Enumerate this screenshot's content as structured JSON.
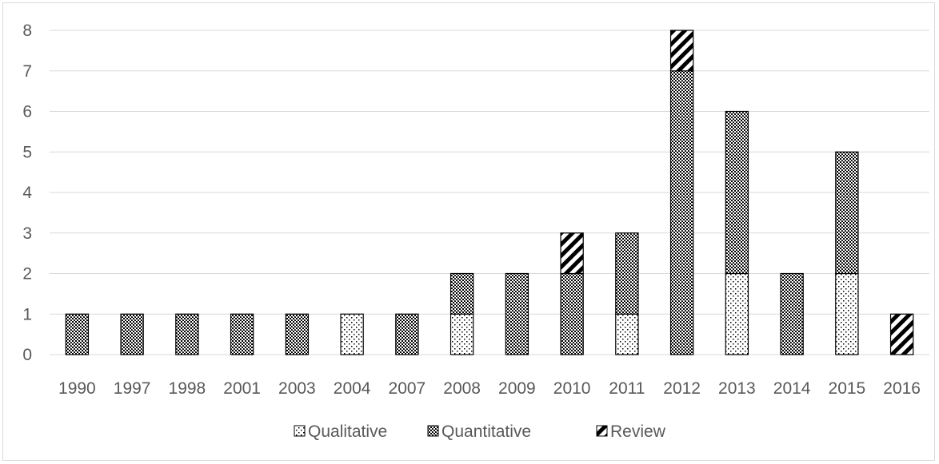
{
  "chart_data": {
    "type": "bar",
    "stacked": true,
    "categories": [
      "1990",
      "1997",
      "1998",
      "2001",
      "2003",
      "2004",
      "2007",
      "2008",
      "2009",
      "2010",
      "2011",
      "2012",
      "2013",
      "2014",
      "2015",
      "2016"
    ],
    "series": [
      {
        "name": "Qualitative",
        "values": [
          0,
          0,
          0,
          0,
          0,
          1,
          0,
          1,
          0,
          0,
          1,
          0,
          2,
          0,
          2,
          0
        ],
        "pattern": "sparse-dots"
      },
      {
        "name": "Quantitative",
        "values": [
          1,
          1,
          1,
          1,
          1,
          0,
          1,
          1,
          2,
          2,
          2,
          7,
          4,
          2,
          3,
          0
        ],
        "pattern": "dense-checker"
      },
      {
        "name": "Review",
        "values": [
          0,
          0,
          0,
          0,
          0,
          0,
          0,
          0,
          0,
          1,
          0,
          1,
          0,
          0,
          0,
          1
        ],
        "pattern": "diagonal-stripes"
      }
    ],
    "ylim": [
      0,
      8
    ],
    "yticks": [
      "0",
      "1",
      "2",
      "3",
      "4",
      "5",
      "6",
      "7",
      "8"
    ],
    "grid": true,
    "legend_position": "bottom",
    "title": "",
    "xlabel": "",
    "ylabel": "",
    "colors": {
      "stroke": "#000000",
      "grid": "#d9d9d9",
      "text": "#595959"
    }
  }
}
